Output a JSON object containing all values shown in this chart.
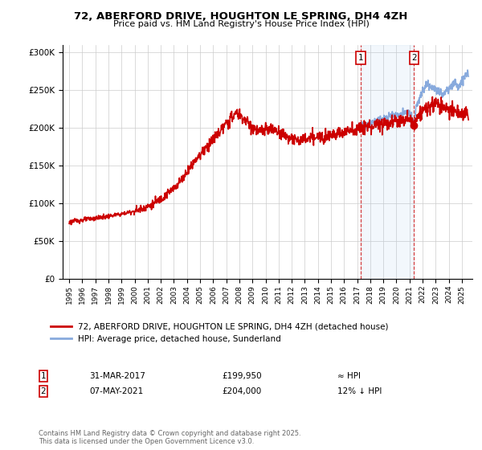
{
  "title_line1": "72, ABERFORD DRIVE, HOUGHTON LE SPRING, DH4 4ZH",
  "title_line2": "Price paid vs. HM Land Registry's House Price Index (HPI)",
  "legend_label_red": "72, ABERFORD DRIVE, HOUGHTON LE SPRING, DH4 4ZH (detached house)",
  "legend_label_blue": "HPI: Average price, detached house, Sunderland",
  "annotation1_date": "31-MAR-2017",
  "annotation1_price": "£199,950",
  "annotation1_hpi": "≈ HPI",
  "annotation2_date": "07-MAY-2021",
  "annotation2_price": "£204,000",
  "annotation2_hpi": "12% ↓ HPI",
  "footer": "Contains HM Land Registry data © Crown copyright and database right 2025.\nThis data is licensed under the Open Government Licence v3.0.",
  "ylim": [
    0,
    310000
  ],
  "yticks": [
    0,
    50000,
    100000,
    150000,
    200000,
    250000,
    300000
  ],
  "ytick_labels": [
    "£0",
    "£50K",
    "£100K",
    "£150K",
    "£200K",
    "£250K",
    "£300K"
  ],
  "marker1_year": 2017.25,
  "marker1_value": 199950,
  "marker2_year": 2021.35,
  "marker2_value": 204000,
  "background_color": "#ffffff",
  "grid_color": "#cccccc",
  "red_color": "#cc0000",
  "blue_color": "#88aadd",
  "shade_color": "#ddeeff"
}
